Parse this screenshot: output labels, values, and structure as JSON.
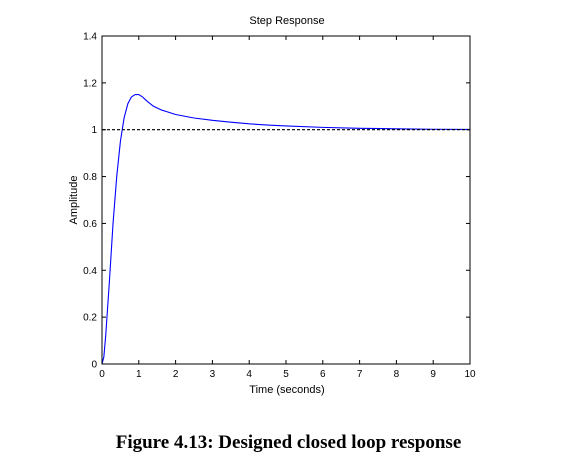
{
  "caption": "Figure 4.13: Designed closed loop response",
  "chart_data": {
    "type": "line",
    "title": "Step Response",
    "xlabel": "Time (seconds)",
    "ylabel": "Amplitude",
    "xlim": [
      0,
      10
    ],
    "ylim": [
      0,
      1.4
    ],
    "xticks": [
      0,
      1,
      2,
      3,
      4,
      5,
      6,
      7,
      8,
      9,
      10
    ],
    "yticks": [
      0,
      0.2,
      0.4,
      0.6,
      0.8,
      1,
      1.2,
      1.4
    ],
    "grid": false,
    "series": [
      {
        "color": "#0000ff",
        "style": "solid",
        "x": [
          0,
          0.05,
          0.1,
          0.2,
          0.3,
          0.4,
          0.5,
          0.6,
          0.7,
          0.8,
          0.9,
          1.0,
          1.1,
          1.2,
          1.4,
          1.6,
          1.8,
          2.0,
          2.5,
          3.0,
          3.5,
          4.0,
          4.5,
          5.0,
          6.0,
          7.0,
          8.0,
          9.0,
          10.0
        ],
        "y": [
          0,
          0.03,
          0.12,
          0.35,
          0.6,
          0.8,
          0.95,
          1.05,
          1.11,
          1.14,
          1.15,
          1.15,
          1.14,
          1.125,
          1.1,
          1.085,
          1.075,
          1.065,
          1.05,
          1.04,
          1.032,
          1.025,
          1.02,
          1.016,
          1.01,
          1.006,
          1.004,
          1.002,
          1.001
        ]
      },
      {
        "color": "#000000",
        "style": "dashed",
        "x": [
          0,
          10
        ],
        "y": [
          1,
          1
        ]
      }
    ]
  }
}
